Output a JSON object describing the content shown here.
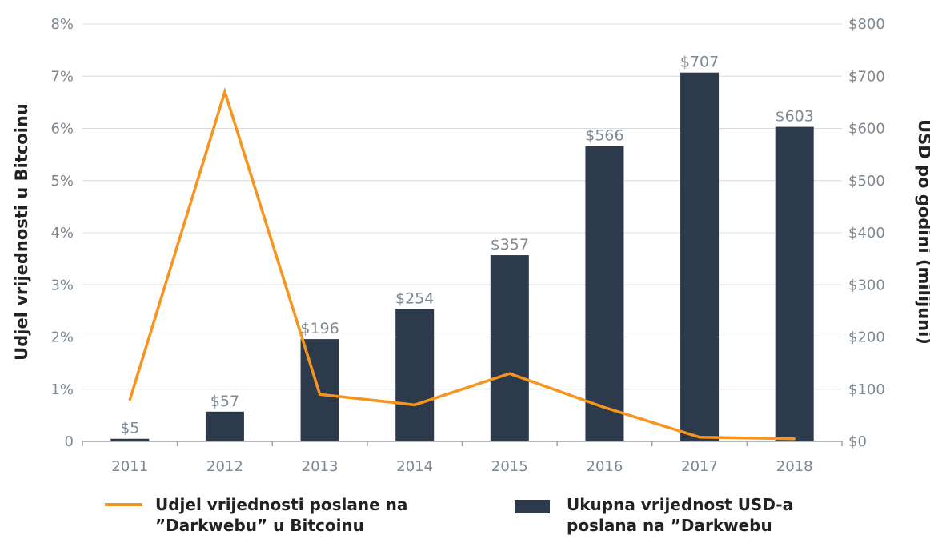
{
  "chart_data": {
    "type": "bar",
    "categories": [
      "2011",
      "2012",
      "2013",
      "2014",
      "2015",
      "2016",
      "2017",
      "2018"
    ],
    "series": [
      {
        "name": "Ukupna vrijednost USD-a poslana na ”Darkwebu",
        "chart": "bar",
        "axis": "right",
        "values": [
          5,
          57,
          196,
          254,
          357,
          566,
          707,
          603
        ],
        "data_labels": [
          "$5",
          "$57",
          "$196",
          "$254",
          "$357",
          "$566",
          "$707",
          "$603"
        ],
        "color": "#2d3a4b"
      },
      {
        "name": "Udjel vrijednosti poslane na ”Darkwebu” u Bitcoinu",
        "chart": "line",
        "axis": "left",
        "values": [
          0.8,
          6.7,
          0.9,
          0.7,
          1.3,
          0.65,
          0.08,
          0.05
        ],
        "color": "#f7941d"
      }
    ],
    "left_axis": {
      "label": "Udjel vrijednosti u Bitcoinu",
      "ylim": [
        0,
        8
      ],
      "ticks": [
        "0",
        "1%",
        "2%",
        "3%",
        "4%",
        "5%",
        "6%",
        "7%",
        "8%"
      ]
    },
    "right_axis": {
      "label": "USD po godini (milijuni)",
      "ylim": [
        0,
        800
      ],
      "ticks": [
        "$0",
        "$100",
        "$200",
        "$300",
        "$400",
        "$500",
        "$600",
        "$700",
        "$800"
      ]
    },
    "grid": true,
    "legend": {
      "placement": "bottom",
      "line_label_1": "Udjel vrijednosti poslane na",
      "line_label_2": "”Darkwebu” u Bitcoinu",
      "bar_label_1": "Ukupna vrijednost USD-a",
      "bar_label_2": "poslana na ”Darkwebu"
    }
  }
}
